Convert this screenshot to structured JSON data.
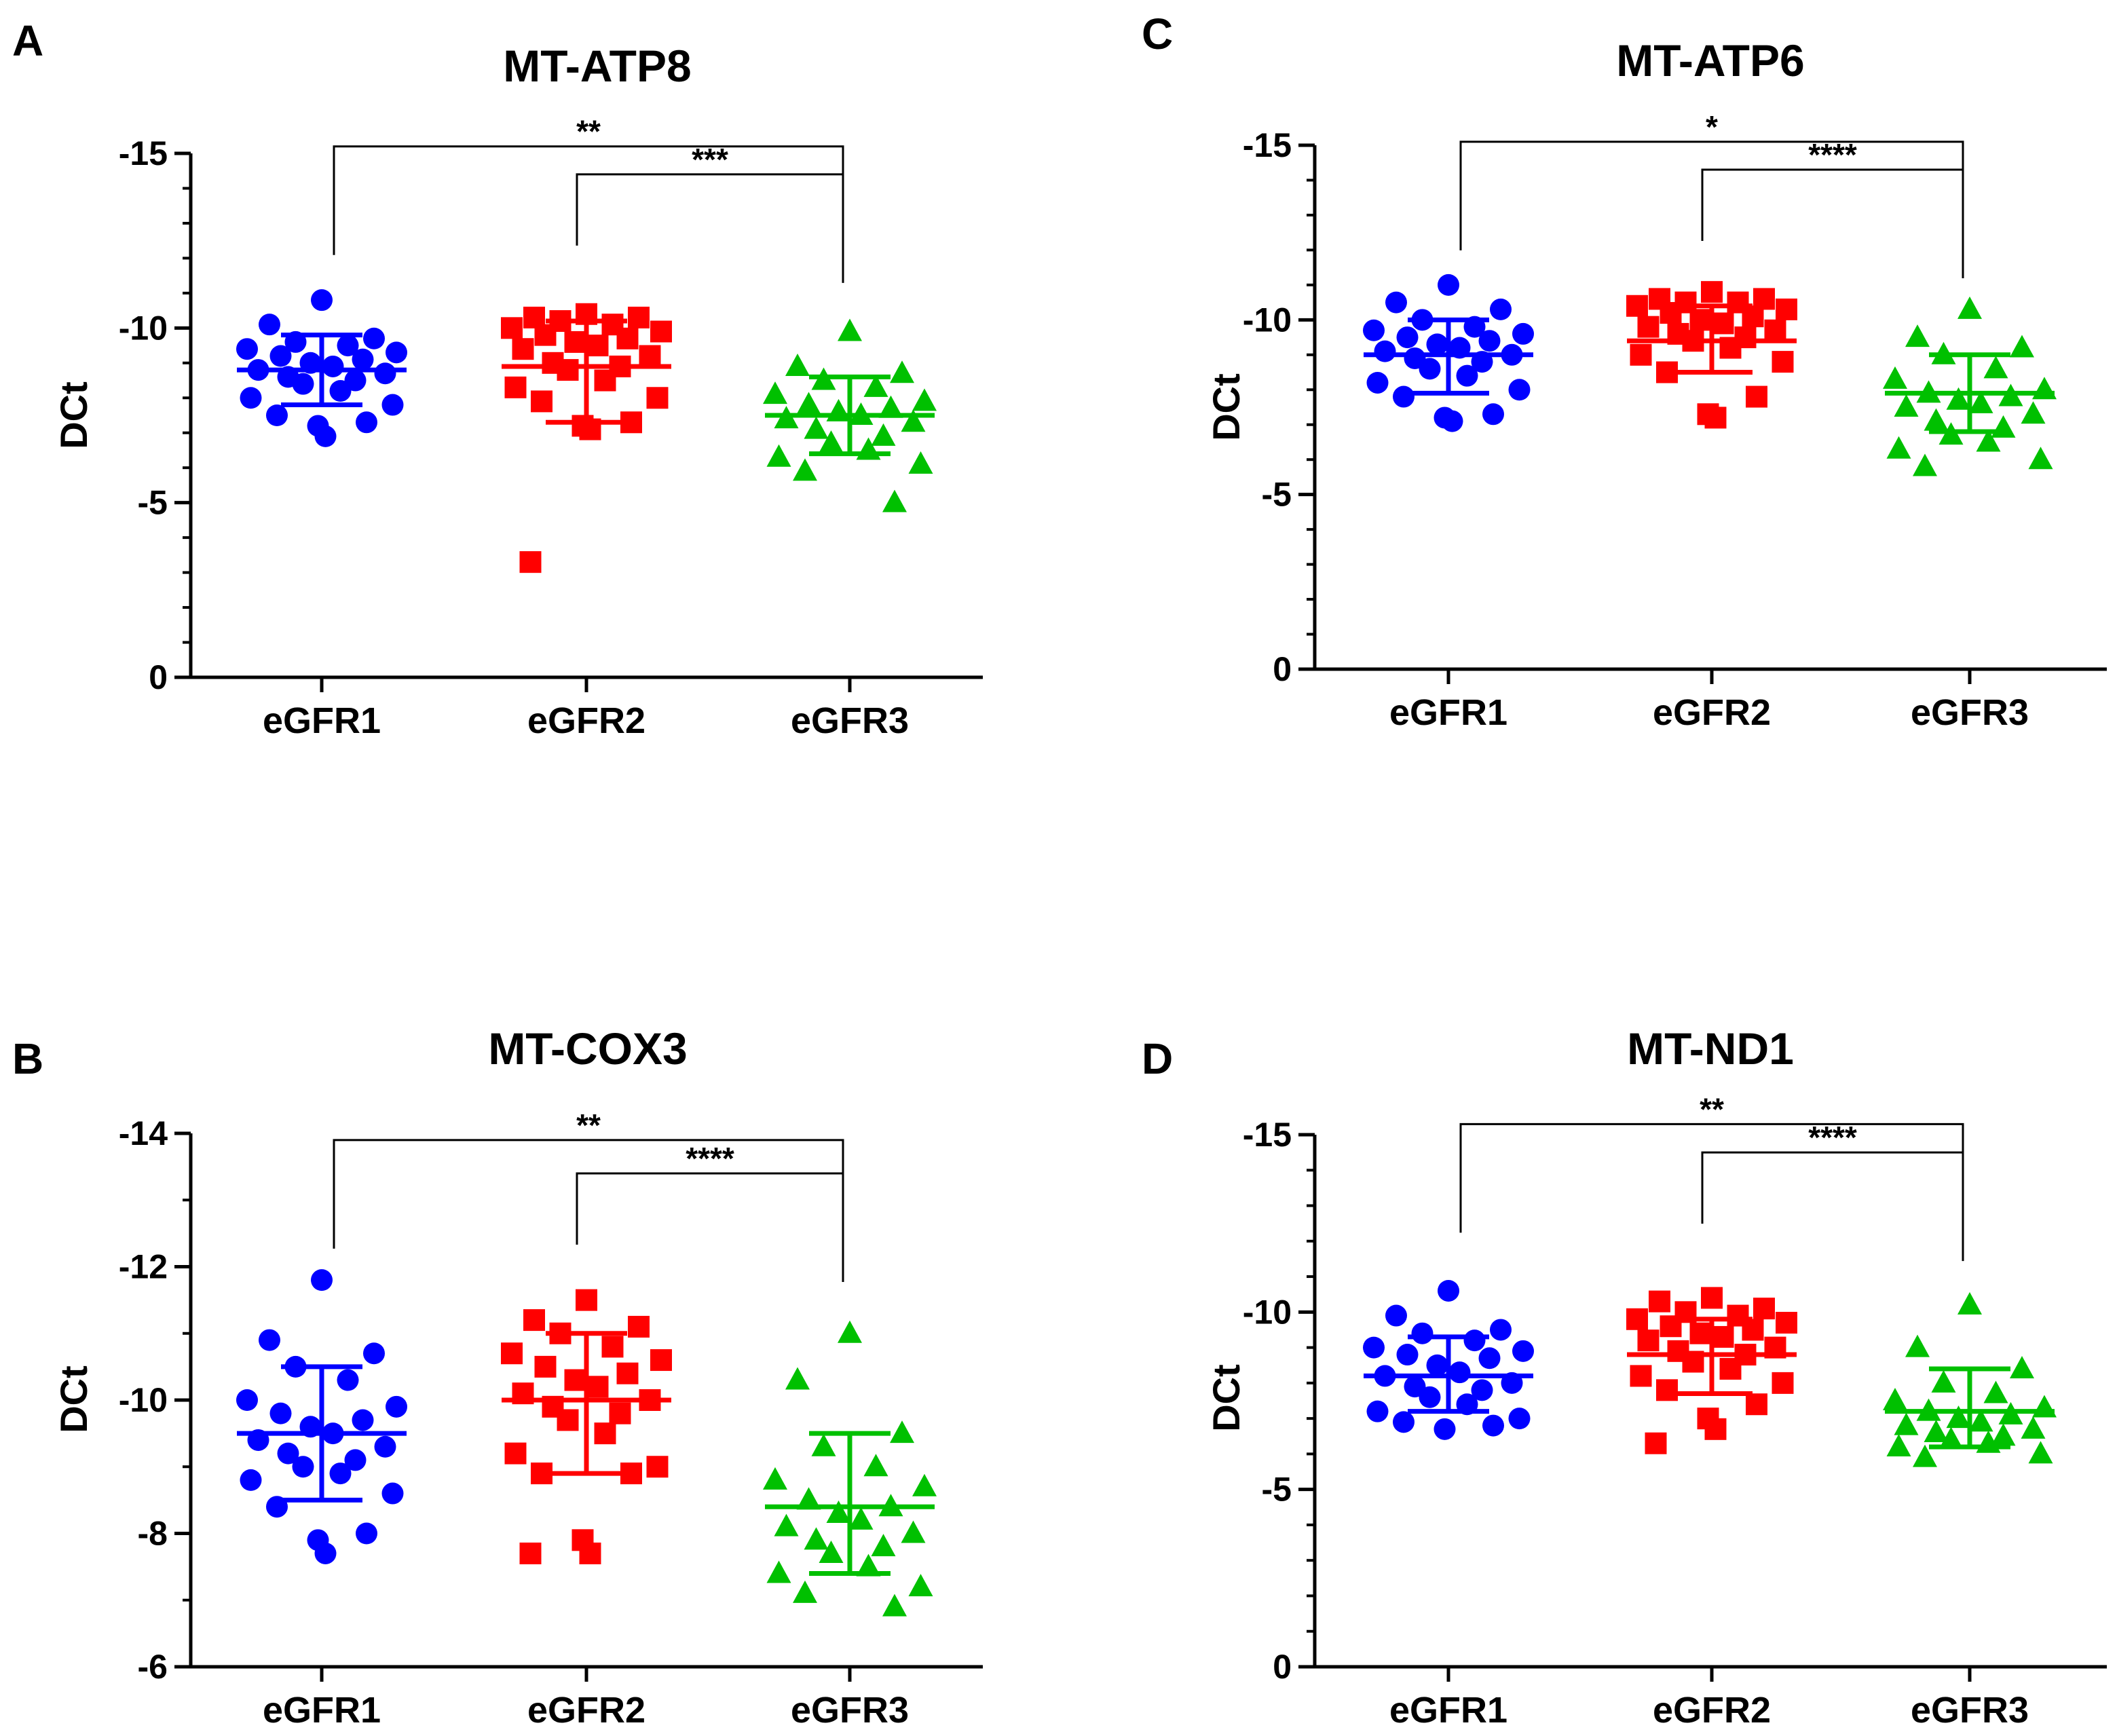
{
  "figure": {
    "colors": {
      "eGFR1": "#0000ff",
      "eGFR2": "#ff0000",
      "eGFR3": "#00c000"
    }
  },
  "chart_data": [
    {
      "panel": "A",
      "title": "MT-ATP8",
      "type": "scatter",
      "ylabel": "DCt",
      "ylim": [
        0,
        -15
      ],
      "yticks": [
        -15,
        -10,
        -5,
        0
      ],
      "categories": [
        "eGFR1",
        "eGFR2",
        "eGFR3"
      ],
      "series": [
        {
          "name": "eGFR1",
          "marker": "circle",
          "mean": -8.8,
          "sd_low": -7.8,
          "sd_high": -9.8,
          "values": [
            -10.8,
            -10.1,
            -9.7,
            -9.6,
            -9.5,
            -9.4,
            -9.3,
            -9.2,
            -9.1,
            -9.0,
            -8.9,
            -8.8,
            -8.7,
            -8.6,
            -8.5,
            -8.4,
            -8.2,
            -8.0,
            -7.8,
            -7.5,
            -7.3,
            -7.2,
            -6.9
          ]
        },
        {
          "name": "eGFR2",
          "marker": "square",
          "mean": -8.9,
          "sd_low": -7.3,
          "sd_high": -10.2,
          "values": [
            -10.4,
            -10.3,
            -10.3,
            -10.2,
            -10.1,
            -10.0,
            -9.9,
            -9.8,
            -9.7,
            -9.6,
            -9.5,
            -9.4,
            -9.2,
            -9.0,
            -8.9,
            -8.8,
            -8.5,
            -8.3,
            -8.0,
            -7.9,
            -7.3,
            -7.2,
            -7.1,
            -3.3
          ]
        },
        {
          "name": "eGFR3",
          "marker": "triangle",
          "mean": -7.5,
          "sd_low": -6.4,
          "sd_high": -8.6,
          "values": [
            -9.9,
            -8.9,
            -8.7,
            -8.5,
            -8.3,
            -8.1,
            -7.9,
            -7.8,
            -7.7,
            -7.6,
            -7.5,
            -7.4,
            -7.3,
            -7.1,
            -6.9,
            -6.7,
            -6.5,
            -6.3,
            -6.1,
            -5.9,
            -5.0
          ]
        }
      ],
      "brackets": [
        {
          "from": 0,
          "to": 2,
          "label": "**",
          "y": -15.2
        },
        {
          "from": 1,
          "to": 2,
          "label": "***",
          "y": -14.4
        }
      ]
    },
    {
      "panel": "B",
      "title": "MT-COX3",
      "type": "scatter",
      "ylabel": "DCt",
      "ylim": [
        -6,
        -14
      ],
      "yticks": [
        -14,
        -12,
        -10,
        -8,
        -6
      ],
      "categories": [
        "eGFR1",
        "eGFR2",
        "eGFR3"
      ],
      "series": [
        {
          "name": "eGFR1",
          "marker": "circle",
          "mean": -9.5,
          "sd_low": -8.5,
          "sd_high": -10.5,
          "values": [
            -11.8,
            -10.9,
            -10.7,
            -10.5,
            -10.3,
            -10.0,
            -9.9,
            -9.8,
            -9.7,
            -9.6,
            -9.5,
            -9.4,
            -9.3,
            -9.2,
            -9.1,
            -9.0,
            -8.9,
            -8.8,
            -8.6,
            -8.4,
            -8.0,
            -7.9,
            -7.7
          ]
        },
        {
          "name": "eGFR2",
          "marker": "square",
          "mean": -10.0,
          "sd_low": -8.9,
          "sd_high": -11.0,
          "values": [
            -11.5,
            -11.2,
            -11.1,
            -11.0,
            -10.8,
            -10.7,
            -10.6,
            -10.5,
            -10.4,
            -10.3,
            -10.2,
            -10.1,
            -10.0,
            -9.9,
            -9.8,
            -9.7,
            -9.5,
            -9.2,
            -9.0,
            -8.9,
            -8.9,
            -7.9,
            -7.7,
            -7.7
          ]
        },
        {
          "name": "eGFR3",
          "marker": "triangle",
          "mean": -8.4,
          "sd_low": -7.4,
          "sd_high": -9.5,
          "values": [
            -11.0,
            -10.3,
            -9.5,
            -9.3,
            -9.0,
            -8.8,
            -8.7,
            -8.5,
            -8.4,
            -8.3,
            -8.2,
            -8.1,
            -8.0,
            -7.9,
            -7.8,
            -7.7,
            -7.5,
            -7.4,
            -7.2,
            -7.1,
            -6.9
          ]
        }
      ],
      "brackets": [
        {
          "from": 0,
          "to": 2,
          "label": "**",
          "y": -13.9
        },
        {
          "from": 1,
          "to": 2,
          "label": "****",
          "y": -13.4
        }
      ]
    },
    {
      "panel": "C",
      "title": "MT-ATP6",
      "type": "scatter",
      "ylabel": "DCt",
      "ylim": [
        0,
        -15
      ],
      "yticks": [
        -15,
        -10,
        -5,
        0
      ],
      "categories": [
        "eGFR1",
        "eGFR2",
        "eGFR3"
      ],
      "series": [
        {
          "name": "eGFR1",
          "marker": "circle",
          "mean": -9.0,
          "sd_low": -7.9,
          "sd_high": -10.0,
          "values": [
            -11.0,
            -10.5,
            -10.3,
            -10.0,
            -9.8,
            -9.7,
            -9.6,
            -9.5,
            -9.4,
            -9.3,
            -9.2,
            -9.1,
            -9.0,
            -8.9,
            -8.8,
            -8.6,
            -8.4,
            -8.2,
            -8.0,
            -7.8,
            -7.3,
            -7.2,
            -7.1
          ]
        },
        {
          "name": "eGFR2",
          "marker": "square",
          "mean": -9.4,
          "sd_low": -8.5,
          "sd_high": -10.4,
          "values": [
            -10.8,
            -10.6,
            -10.6,
            -10.5,
            -10.5,
            -10.4,
            -10.3,
            -10.2,
            -10.1,
            -10.0,
            -9.9,
            -9.8,
            -9.7,
            -9.6,
            -9.5,
            -9.4,
            -9.2,
            -9.0,
            -8.8,
            -8.5,
            -7.8,
            -7.3,
            -7.2
          ]
        },
        {
          "name": "eGFR3",
          "marker": "triangle",
          "mean": -7.9,
          "sd_low": -6.8,
          "sd_high": -9.0,
          "values": [
            -10.3,
            -9.5,
            -9.2,
            -9.0,
            -8.6,
            -8.3,
            -8.0,
            -7.9,
            -7.8,
            -7.7,
            -7.6,
            -7.5,
            -7.3,
            -7.1,
            -6.9,
            -6.7,
            -6.5,
            -6.3,
            -6.0,
            -5.8
          ]
        }
      ],
      "brackets": [
        {
          "from": 0,
          "to": 2,
          "label": "*",
          "y": -15.1
        },
        {
          "from": 1,
          "to": 2,
          "label": "****",
          "y": -14.3
        }
      ]
    },
    {
      "panel": "D",
      "title": "MT-ND1",
      "type": "scatter",
      "ylabel": "DCt",
      "ylim": [
        0,
        -15
      ],
      "yticks": [
        -15,
        -10,
        -5,
        0
      ],
      "categories": [
        "eGFR1",
        "eGFR2",
        "eGFR3"
      ],
      "series": [
        {
          "name": "eGFR1",
          "marker": "circle",
          "mean": -8.2,
          "sd_low": -7.2,
          "sd_high": -9.3,
          "values": [
            -10.6,
            -9.9,
            -9.5,
            -9.4,
            -9.2,
            -9.0,
            -8.9,
            -8.8,
            -8.7,
            -8.5,
            -8.3,
            -8.2,
            -8.0,
            -7.9,
            -7.8,
            -7.6,
            -7.4,
            -7.2,
            -7.0,
            -6.9,
            -6.8,
            -6.7
          ]
        },
        {
          "name": "eGFR2",
          "marker": "square",
          "mean": -8.8,
          "sd_low": -7.7,
          "sd_high": -9.8,
          "values": [
            -10.4,
            -10.3,
            -10.1,
            -10.0,
            -9.9,
            -9.8,
            -9.7,
            -9.6,
            -9.5,
            -9.4,
            -9.3,
            -9.2,
            -9.0,
            -8.9,
            -8.8,
            -8.6,
            -8.4,
            -8.2,
            -8.0,
            -7.8,
            -7.4,
            -7.0,
            -6.7,
            -6.3
          ]
        },
        {
          "name": "eGFR3",
          "marker": "triangle",
          "mean": -7.2,
          "sd_low": -6.2,
          "sd_high": -8.4,
          "values": [
            -10.2,
            -9.0,
            -8.4,
            -8.0,
            -7.7,
            -7.5,
            -7.3,
            -7.2,
            -7.1,
            -7.0,
            -6.9,
            -6.8,
            -6.7,
            -6.6,
            -6.5,
            -6.4,
            -6.3,
            -6.2,
            -6.0,
            -5.9
          ]
        }
      ],
      "brackets": [
        {
          "from": 0,
          "to": 2,
          "label": "**",
          "y": -15.3
        },
        {
          "from": 1,
          "to": 2,
          "label": "****",
          "y": -14.5
        }
      ]
    }
  ]
}
